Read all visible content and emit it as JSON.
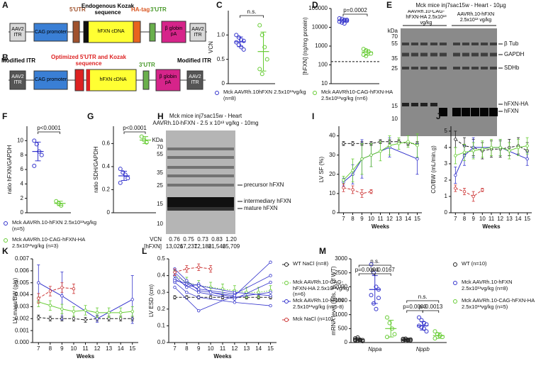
{
  "panel_a": {
    "panel": "A",
    "labels": [
      "5'UTR",
      "Endogenous Kozak sequence",
      "HA-tag",
      "3'UTR",
      "AAV2 ITR",
      "CAG promoter",
      "hFXN cDNA",
      "β globin pA",
      "AAV2 ITR"
    ]
  },
  "panel_b": {
    "panel": "B",
    "labels": [
      "Modified ITR",
      "Optimized 5'UTR and Kozak sequence",
      "3'UTR",
      "Modified ITR",
      "AAV2 ITR",
      "CAG promoter",
      "hFXN cDNA",
      "β globin pA",
      "AAV2 ITR"
    ]
  },
  "panel_e": {
    "panel": "E",
    "title": "Mck mice inj7sac15w - Heart - 10µg",
    "groups": [
      "AAVRh.10-CAG-hFXN-HA 2.5x10¹³ vg/kg",
      "AAVRh.10-hFXN 2.5x10¹³ vg/kg"
    ],
    "kda_label": "kDa",
    "markers": [
      "70",
      "55",
      "35",
      "25",
      "15",
      "10"
    ],
    "bands": [
      "β Tub",
      "GAPDH",
      "SDHb",
      "hFXN-HA",
      "hFXN"
    ]
  },
  "panel_h": {
    "panel": "H",
    "title": "Mck mice inj7sac15w - Heart",
    "subtitle": "AAVRh.10-hFXN - 2.5 x 10¹³ vg/kg - 10mg",
    "kda_label": "KDa",
    "markers": [
      "70",
      "55",
      "35",
      "25",
      "15",
      "10"
    ],
    "bands": [
      "precursor hFXN",
      "intermediary hFXN",
      "mature hFXN"
    ],
    "table": {
      "rows": [
        [
          "VCN",
          "0.76",
          "0.75",
          "0.73",
          "0.83",
          "1.20"
        ],
        [
          "[hFXN]",
          "13,026",
          "17,237",
          "12,188",
          "21,546",
          "25,709"
        ]
      ]
    }
  },
  "chart_data": [
    {
      "type": "dot",
      "panel": "C",
      "ylabel": "VCN",
      "ylim": [
        0,
        1.5
      ],
      "yticks": [
        0,
        0.5,
        {
          "value": 1,
          "label": "1.0"
        }
      ],
      "annotations": [
        "n.s."
      ],
      "series": [
        {
          "name": "Mck AAVRh.10hFXN 2.5x10¹³vg/kg (n=8)",
          "color": "#3333cc",
          "values": [
            1.0,
            0.95,
            0.9,
            0.88,
            0.85,
            0.8,
            0.75,
            0.7
          ],
          "mean": 0.86,
          "sd": 0.1
        },
        {
          "color": "#66cc33",
          "values": [
            1.2,
            1.0,
            0.75,
            0.5,
            0.3,
            0.2
          ],
          "mean": 0.66,
          "sd": 0.4
        }
      ]
    },
    {
      "type": "dot",
      "panel": "D",
      "ylabel": "[hFXN] (ng/mg protein)",
      "log": true,
      "ylim": [
        10,
        100000
      ],
      "yticks": [
        10,
        100,
        1000,
        10000,
        100000
      ],
      "reference_line": 150,
      "annotations": [
        "p=0.0002"
      ],
      "series": [
        {
          "color": "#3333cc",
          "values": [
            30000,
            28000,
            25000,
            22000,
            20000,
            18000,
            16000,
            25000
          ],
          "mean": 23000,
          "sd": 4000
        },
        {
          "name": "Mck AAVRh10-CAG-hFXN-HA 2.5x10¹³vg/kg (n=6)",
          "color": "#66cc33",
          "values": [
            700,
            600,
            500,
            400,
            350,
            300
          ],
          "mean": 480,
          "sd": 150
        }
      ]
    },
    {
      "type": "dot",
      "panel": "F",
      "ylabel": "ratio hFXN/GAPDH",
      "ylim": [
        0,
        12
      ],
      "yticks": [
        0,
        2,
        4,
        6,
        8,
        10
      ],
      "annotations": [
        "p<0.0001"
      ],
      "series": [
        {
          "name": "Mck AAVRh.10-hFXN 2.5x10¹³vg/kg (n=5)",
          "color": "#3333cc",
          "values": [
            10,
            9.5,
            8.5,
            8,
            6.5
          ],
          "mean": 8.5,
          "sd": 1.3
        },
        {
          "color": "#66cc33",
          "values": [
            1.6,
            1.3,
            1.0
          ],
          "mean": 1.3,
          "sd": 0.3
        }
      ]
    },
    {
      "type": "dot",
      "panel": "G",
      "ylabel": "ratio SDH/GAPDH",
      "ylim": [
        0,
        0.75
      ],
      "yticks": [
        0,
        0.2,
        0.4,
        0.6
      ],
      "annotations": [
        "p<0.0001"
      ],
      "series": [
        {
          "color": "#3333cc",
          "values": [
            0.38,
            0.35,
            0.33,
            0.3,
            0.26
          ],
          "mean": 0.32,
          "sd": 0.04
        },
        {
          "name": "Mck AAVRh.10-CAG-hFXN-HA 2.5x10¹³vg/kg (n=3)",
          "color": "#66cc33",
          "values": [
            0.66,
            0.63,
            0.61
          ],
          "mean": 0.63,
          "sd": 0.03
        }
      ]
    },
    {
      "type": "line",
      "panel": "I",
      "ylabel": "LV SF (%)",
      "xlabel": "Weeks",
      "xlim": [
        6.5,
        15.5
      ],
      "xticks": [
        7,
        8,
        9,
        10,
        11,
        12,
        13,
        14,
        15
      ],
      "ylim": [
        0,
        45
      ],
      "yticks": [
        0,
        10,
        20,
        30,
        40
      ],
      "series": [
        {
          "color": "#222222",
          "style": "dashed",
          "x": [
            7,
            8,
            9,
            10,
            11,
            12,
            13,
            14,
            15
          ],
          "values": [
            36,
            36,
            36,
            36,
            37,
            37,
            37,
            36,
            36
          ],
          "errors": [
            1,
            1,
            1,
            1,
            1,
            1,
            1,
            1,
            1
          ]
        },
        {
          "color": "#3333cc",
          "style": "solid",
          "x": [
            7,
            8,
            9,
            10,
            12,
            15
          ],
          "values": [
            16,
            20,
            28,
            30,
            34,
            28
          ],
          "errors": [
            2,
            5,
            10,
            6,
            5,
            8
          ]
        },
        {
          "color": "#66cc33",
          "style": "solid",
          "x": [
            7,
            8,
            9,
            10,
            11,
            12,
            13,
            14,
            15
          ],
          "values": [
            17,
            22,
            28,
            30,
            32,
            35,
            36,
            37,
            35
          ],
          "errors": [
            2,
            6,
            8,
            6,
            5,
            5,
            3,
            3,
            6
          ]
        },
        {
          "color": "#cc3333",
          "style": "dashed",
          "x": [
            7,
            8,
            9,
            10
          ],
          "values": [
            13,
            12,
            10,
            11
          ],
          "errors": [
            2,
            2,
            2,
            1
          ]
        }
      ]
    },
    {
      "type": "line",
      "panel": "J",
      "ylabel": "CO/BW (mL/min.g)",
      "xlabel": "Weeks",
      "xlim": [
        6.5,
        15.5
      ],
      "xticks": [
        7,
        8,
        9,
        10,
        11,
        12,
        13,
        14,
        15
      ],
      "ylim": [
        0,
        5.3
      ],
      "yticks": [
        0,
        1,
        2,
        3,
        4,
        5
      ],
      "series": [
        {
          "color": "#222222",
          "style": "dashed",
          "x": [
            7,
            8,
            9,
            10,
            11,
            12,
            13,
            14,
            15
          ],
          "values": [
            4.5,
            4.1,
            4.0,
            3.8,
            3.9,
            3.9,
            4.0,
            4.1,
            3.8
          ],
          "errors": [
            0.5,
            0.5,
            0.5,
            0.5,
            0.5,
            0.5,
            0.5,
            0.5,
            0.5
          ]
        },
        {
          "color": "#3333cc",
          "style": "solid",
          "x": [
            7,
            8,
            9,
            12,
            15
          ],
          "values": [
            2.3,
            3.5,
            4.0,
            4.0,
            3.3
          ],
          "errors": [
            0.5,
            0.6,
            0.6,
            0.5,
            0.4
          ]
        },
        {
          "color": "#66cc33",
          "style": "solid",
          "x": [
            7,
            8,
            9,
            10,
            11,
            12,
            13,
            14,
            15
          ],
          "values": [
            3.5,
            3.7,
            3.8,
            3.9,
            4.0,
            4.0,
            3.8,
            4.0,
            4.1
          ],
          "errors": [
            0.5,
            0.5,
            0.5,
            0.5,
            0.5,
            0.5,
            0.5,
            0.5,
            0.5
          ]
        },
        {
          "color": "#cc3333",
          "style": "dashed",
          "x": [
            7,
            8,
            9,
            10
          ],
          "values": [
            1.5,
            1.3,
            1.0,
            1.4
          ],
          "errors": [
            0.2,
            0.2,
            0.3,
            0.1
          ]
        }
      ]
    },
    {
      "type": "line",
      "panel": "K",
      "ylabel": "LV mass/BW (g/g)",
      "xlabel": "Weeks",
      "xlim": [
        6.5,
        15.5
      ],
      "xticks": [
        7,
        8,
        9,
        10,
        11,
        12,
        13,
        14,
        15
      ],
      "ylim": [
        0,
        0.007
      ],
      "yticks": [
        {
          "value": 0,
          "label": "0.000"
        },
        0.001,
        0.002,
        0.003,
        0.004,
        0.005,
        0.006,
        0.007
      ],
      "series": [
        {
          "color": "#222222",
          "style": "dashed",
          "x": [
            7,
            8,
            9,
            10,
            11,
            12,
            13,
            14,
            15
          ],
          "values": [
            0.0021,
            0.002,
            0.002,
            0.002,
            0.0019,
            0.002,
            0.002,
            0.002,
            0.002
          ],
          "errors": [
            0.0002,
            0.0002,
            0.0002,
            0.0002,
            0.0002,
            0.0002,
            0.0002,
            0.0002,
            0.0002
          ]
        },
        {
          "color": "#3333cc",
          "style": "solid",
          "x": [
            7,
            9,
            12,
            15
          ],
          "values": [
            0.005,
            0.0039,
            0.002,
            0.0036
          ],
          "errors": [
            0.0015,
            0.002,
            0.0003,
            0.002
          ]
        },
        {
          "color": "#66cc33",
          "style": "solid",
          "x": [
            7,
            8,
            9,
            10,
            11,
            12,
            13,
            14,
            15
          ],
          "values": [
            0.0034,
            0.0031,
            0.0028,
            0.0026,
            0.0027,
            0.0025,
            0.0025,
            0.0025,
            0.0026
          ],
          "errors": [
            0.0004,
            0.0004,
            0.0004,
            0.0004,
            0.0004,
            0.0004,
            0.0004,
            0.0004,
            0.0004
          ]
        },
        {
          "color": "#cc3333",
          "style": "dashed",
          "x": [
            7,
            8,
            9,
            10
          ],
          "values": [
            0.0037,
            0.0043,
            0.0046,
            0.0045
          ],
          "errors": [
            0.0004,
            0.0004,
            0.0004,
            0.0004
          ]
        }
      ]
    },
    {
      "type": "line",
      "panel": "L",
      "ylabel": "LV ESD (cm)",
      "xlabel": "Weeks",
      "xlim": [
        6.5,
        15.5
      ],
      "xticks": [
        7,
        8,
        9,
        10,
        11,
        12,
        13,
        14,
        15
      ],
      "ylim": [
        0,
        0.5
      ],
      "yticks": [
        {
          "value": 0,
          "label": "0.0"
        },
        0.1,
        0.2,
        0.3,
        0.4,
        0.5
      ],
      "series": [
        {
          "name": "WT NaCl (n=8)",
          "color": "#222222",
          "style": "dashed",
          "x": [
            7,
            8,
            9,
            10,
            11,
            12,
            13,
            14,
            15
          ],
          "values": [
            0.27,
            0.27,
            0.27,
            0.27,
            0.27,
            0.27,
            0.27,
            0.27,
            0.27
          ],
          "errors": [
            0.01,
            0.01,
            0.01,
            0.01,
            0.01,
            0.01,
            0.01,
            0.01,
            0.01
          ]
        },
        {
          "name": "Mck AAVRh.10-CAG-hFXN-HA 2.5x10¹³vg/kg (n=6)",
          "color": "#66cc33",
          "style": "dotted",
          "x": [
            7,
            8,
            9,
            10,
            11,
            12,
            13,
            14,
            15
          ],
          "values": [
            0.4,
            0.36,
            0.34,
            0.33,
            0.32,
            0.31,
            0.3,
            0.3,
            0.31
          ],
          "errors": [
            0.03,
            0.03,
            0.03,
            0.03,
            0.03,
            0.03,
            0.03,
            0.03,
            0.03
          ]
        },
        {
          "name": "Mck AAVRh.10-hFXN 2.5x10¹³vg/kg (n=5-8)",
          "color": "#3333cc",
          "style": "solid",
          "individuals": [
            {
              "x": [
                7,
                8,
                9,
                12,
                15
              ],
              "values": [
                0.44,
                0.37,
                0.31,
                0.28,
                0.48
              ]
            },
            {
              "x": [
                7,
                8,
                9,
                12,
                15
              ],
              "values": [
                0.42,
                0.35,
                0.32,
                0.29,
                0.4
              ]
            },
            {
              "x": [
                7,
                8,
                9,
                10,
                12,
                15
              ],
              "values": [
                0.4,
                0.33,
                0.35,
                0.3,
                0.27,
                0.3
              ]
            },
            {
              "x": [
                7,
                9,
                12,
                15
              ],
              "values": [
                0.38,
                0.3,
                0.26,
                0.36
              ]
            },
            {
              "x": [
                7,
                8,
                9,
                12,
                15
              ],
              "values": [
                0.36,
                0.3,
                0.27,
                0.24,
                0.22
              ]
            },
            {
              "x": [
                7,
                9,
                12
              ],
              "values": [
                0.33,
                0.19,
                0.28
              ]
            },
            {
              "x": [
                7,
                9,
                12,
                15
              ],
              "values": [
                0.37,
                0.34,
                0.3,
                0.28
              ]
            }
          ]
        },
        {
          "name": "Mck NaCl (n=10)",
          "color": "#cc3333",
          "style": "dashed",
          "x": [
            7,
            8,
            9,
            10
          ],
          "values": [
            0.42,
            0.44,
            0.45,
            0.44
          ],
          "errors": [
            0.02,
            0.02,
            0.02,
            0.02
          ]
        }
      ]
    },
    {
      "type": "dot",
      "panel": "M",
      "ylabel": "mRNA level (18s, % of WT)",
      "categories": [
        "Nppa",
        "Nppb"
      ],
      "ylim": [
        0,
        3000
      ],
      "yticks": [
        0,
        500,
        1000,
        1500,
        2000,
        2500,
        3000
      ],
      "annotations": [
        "n.s.",
        "p=0.0001",
        "p=0.0167",
        "n.s.",
        "p=0.0003",
        "p=0.0013"
      ],
      "series": [
        {
          "name": "WT (n=10)",
          "color": "#222222",
          "values": [
            [
              150,
              120,
              100,
              90,
              80,
              70,
              60,
              50,
              100,
              180
            ],
            [
              120,
              100,
              90,
              80,
              70,
              60,
              100,
              110,
              130,
              140
            ]
          ],
          "mean": [
            100,
            100
          ],
          "sd": [
            40,
            30
          ]
        },
        {
          "name": "Mck AAVRh.10-hFXN 2.5x10¹³vg/kg (n=8)",
          "color": "#3333cc",
          "values": [
            [
              2800,
              2500,
              2000,
              1900,
              1700,
              1400,
              1200,
              1600
            ],
            [
              900,
              800,
              700,
              650,
              600,
              550,
              500,
              400
            ]
          ],
          "mean": [
            1900,
            600
          ],
          "sd": [
            500,
            150
          ]
        },
        {
          "name": "Mck AAVRh.10-CAG-hFXN-HA 2.5x10¹³vg/kg (n=5)",
          "color": "#66cc33",
          "values": [
            [
              900,
              700,
              500,
              300,
              200
            ],
            [
              400,
              300,
              250,
              200,
              150
            ]
          ],
          "mean": [
            500,
            250
          ],
          "sd": [
            300,
            100
          ]
        }
      ]
    }
  ]
}
